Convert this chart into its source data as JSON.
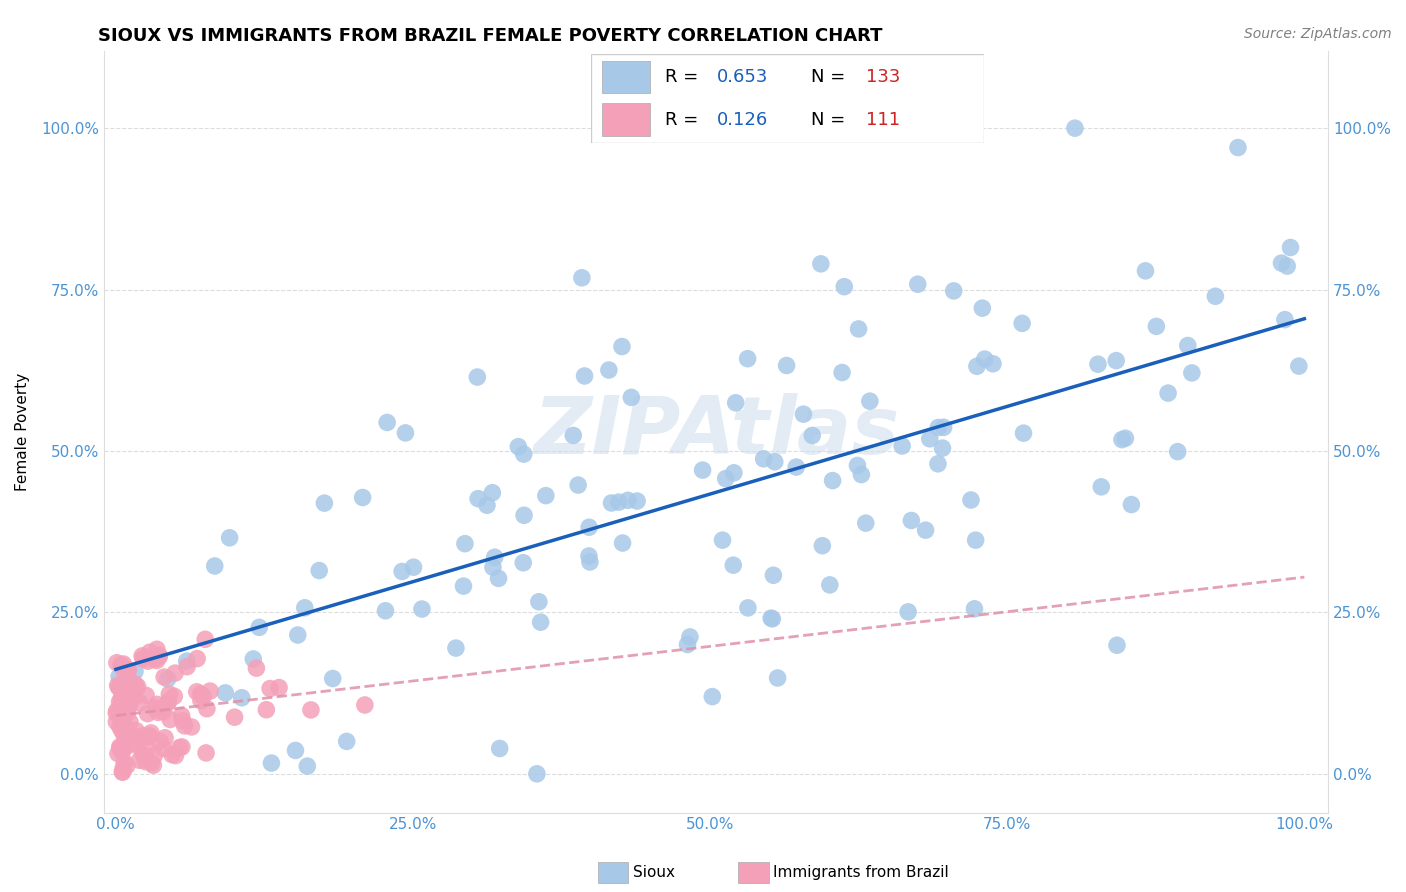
{
  "title": "SIOUX VS IMMIGRANTS FROM BRAZIL FEMALE POVERTY CORRELATION CHART",
  "source_text": "Source: ZipAtlas.com",
  "ylabel": "Female Poverty",
  "sioux_R": 0.653,
  "sioux_N": 133,
  "brazil_R": 0.126,
  "brazil_N": 111,
  "sioux_color": "#a8c8e8",
  "brazil_color": "#f4a0b8",
  "sioux_line_color": "#1a5fba",
  "brazil_line_color": "#e090a8",
  "background_color": "#ffffff",
  "legend_box_sioux": "#a8c8e8",
  "legend_box_brazil": "#f4a0b8",
  "tick_color": "#4d94d4",
  "grid_color": "#dddddd",
  "watermark_color": "#ccddee"
}
